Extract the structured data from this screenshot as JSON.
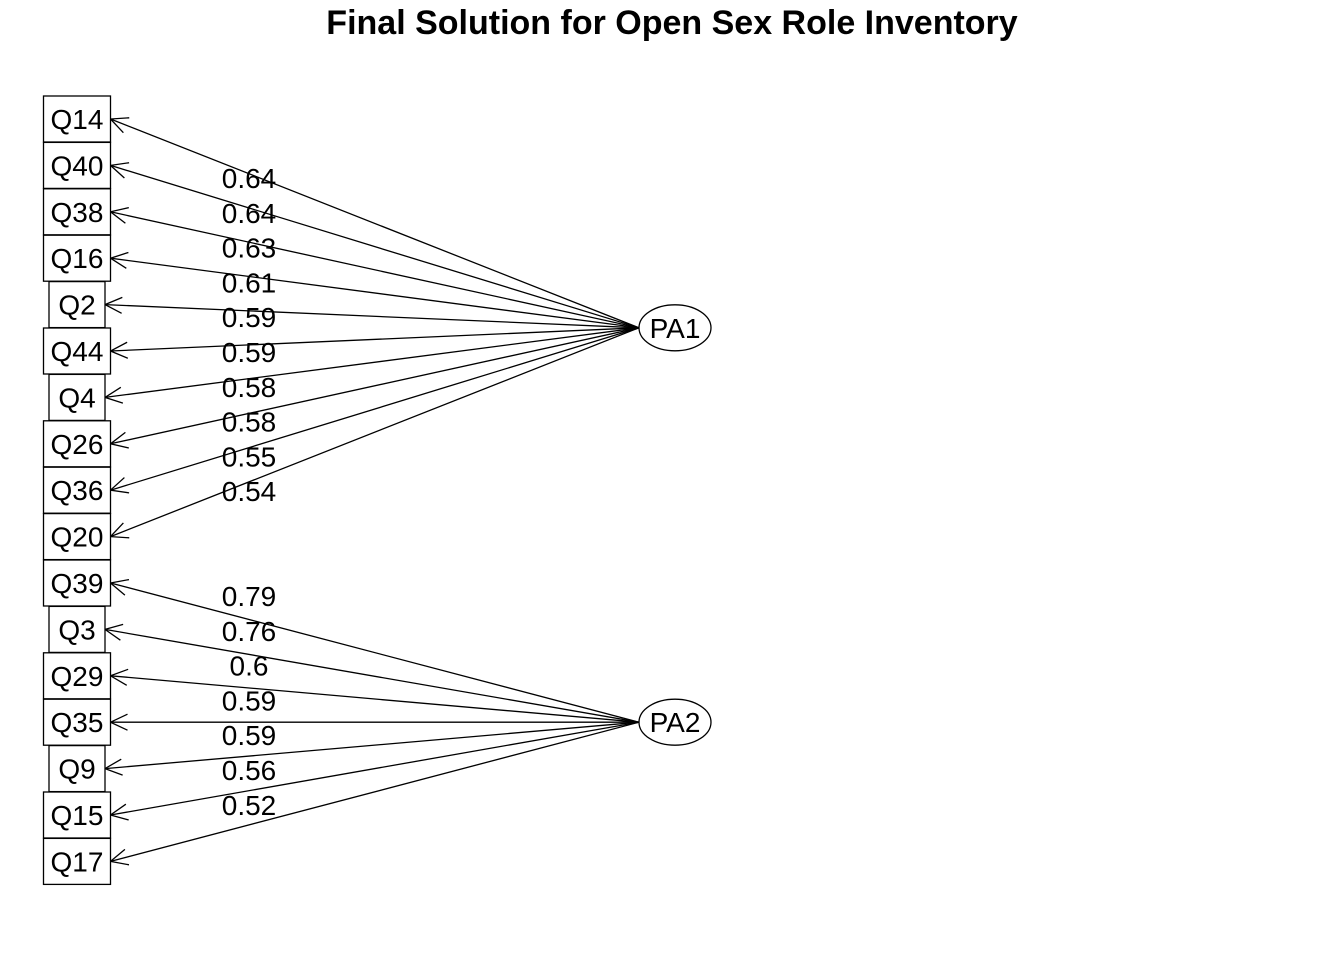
{
  "title": "Final Solution for Open Sex Role Inventory",
  "factors": [
    {
      "name": "PA1",
      "items": [
        {
          "name": "Q14",
          "loading": "0.64"
        },
        {
          "name": "Q40",
          "loading": "0.64"
        },
        {
          "name": "Q38",
          "loading": "0.63"
        },
        {
          "name": "Q16",
          "loading": "0.61"
        },
        {
          "name": "Q2",
          "loading": "0.59"
        },
        {
          "name": "Q44",
          "loading": "0.59"
        },
        {
          "name": "Q4",
          "loading": "0.58"
        },
        {
          "name": "Q26",
          "loading": "0.58"
        },
        {
          "name": "Q36",
          "loading": "0.55"
        },
        {
          "name": "Q20",
          "loading": "0.54"
        }
      ]
    },
    {
      "name": "PA2",
      "items": [
        {
          "name": "Q39",
          "loading": "0.79"
        },
        {
          "name": "Q3",
          "loading": "0.76"
        },
        {
          "name": "Q29",
          "loading": "0.6"
        },
        {
          "name": "Q35",
          "loading": "0.59"
        },
        {
          "name": "Q9",
          "loading": "0.59"
        },
        {
          "name": "Q15",
          "loading": "0.56"
        },
        {
          "name": "Q17",
          "loading": "0.52"
        }
      ]
    }
  ]
}
